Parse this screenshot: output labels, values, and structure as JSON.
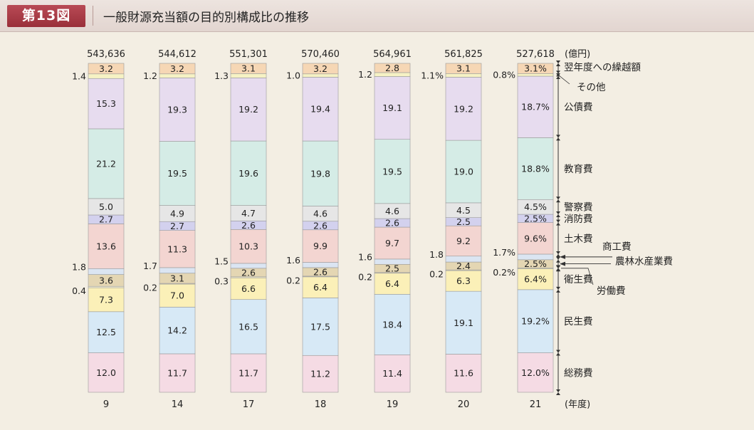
{
  "header": {
    "figure_label": "第13図",
    "title": "一般財源充当額の目的別構成比の推移"
  },
  "chart_data": {
    "type": "bar",
    "subtype": "100% stacked column",
    "title": "一般財源充当額の目的別構成比の推移",
    "unit_label": "(億円)",
    "xlabel_unit": "(年度)",
    "categories": [
      "9",
      "14",
      "17",
      "18",
      "19",
      "20",
      "21"
    ],
    "totals": [
      "543,636",
      "544,612",
      "551,301",
      "570,460",
      "564,961",
      "561,825",
      "527,618"
    ],
    "series": [
      {
        "name": "総務費",
        "color": "#f5dbe4",
        "values": [
          12.0,
          11.7,
          11.7,
          11.2,
          11.4,
          11.6,
          12.0
        ]
      },
      {
        "name": "民生費",
        "color": "#d7e9f6",
        "values": [
          12.5,
          14.2,
          16.5,
          17.5,
          18.4,
          19.1,
          19.2
        ]
      },
      {
        "name": "衛生費",
        "color": "#fbf0b8",
        "values": [
          7.3,
          7.0,
          6.6,
          6.4,
          6.4,
          6.3,
          6.4
        ]
      },
      {
        "name": "労働費",
        "color": "#f8f3d8",
        "values": [
          0.4,
          0.2,
          0.3,
          0.2,
          0.2,
          0.2,
          0.2
        ]
      },
      {
        "name": "農林水産業費",
        "color": "#e4d6b3",
        "values": [
          3.6,
          3.1,
          2.6,
          2.6,
          2.5,
          2.4,
          2.5
        ]
      },
      {
        "name": "商工費",
        "color": "#dbe5f2",
        "values": [
          1.8,
          1.7,
          1.5,
          1.6,
          1.6,
          1.8,
          1.7
        ]
      },
      {
        "name": "土木費",
        "color": "#f3d5d1",
        "values": [
          13.6,
          11.3,
          10.3,
          9.9,
          9.7,
          9.2,
          9.6
        ]
      },
      {
        "name": "消防費",
        "color": "#d3d1ee",
        "values": [
          2.7,
          2.7,
          2.6,
          2.6,
          2.6,
          2.5,
          2.5
        ]
      },
      {
        "name": "警察費",
        "color": "#e6e6e6",
        "values": [
          5.0,
          4.9,
          4.7,
          4.6,
          4.6,
          4.5,
          4.5
        ]
      },
      {
        "name": "教育費",
        "color": "#d5ece6",
        "values": [
          21.2,
          19.5,
          19.6,
          19.8,
          19.5,
          19.0,
          18.8
        ]
      },
      {
        "name": "公債費",
        "color": "#e7dcef",
        "values": [
          15.3,
          19.3,
          19.2,
          19.4,
          19.1,
          19.2,
          18.7
        ]
      },
      {
        "name": "その他",
        "color": "#f6f2c4",
        "values": [
          1.4,
          1.2,
          1.3,
          1.0,
          1.2,
          1.1,
          0.8
        ]
      },
      {
        "name": "翌年度への繰越額",
        "color": "#f6d7b5",
        "values": [
          3.2,
          3.2,
          3.1,
          3.2,
          2.8,
          3.1,
          3.1
        ]
      }
    ],
    "inside_labels": [
      [
        "12.0",
        "12.5",
        "7.3",
        "",
        "3.6",
        "",
        "13.6",
        "2.7",
        "5.0",
        "21.2",
        "15.3",
        "",
        "3.2"
      ],
      [
        "11.7",
        "14.2",
        "7.0",
        "",
        "3.1",
        "",
        "11.3",
        "2.7",
        "4.9",
        "19.5",
        "19.3",
        "",
        "3.2"
      ],
      [
        "11.7",
        "16.5",
        "6.6",
        "",
        "2.6",
        "",
        "10.3",
        "2.6",
        "4.7",
        "19.6",
        "19.2",
        "",
        "3.1"
      ],
      [
        "11.2",
        "17.5",
        "6.4",
        "",
        "2.6",
        "",
        "9.9",
        "2.6",
        "4.6",
        "19.8",
        "19.4",
        "",
        "3.2"
      ],
      [
        "11.4",
        "18.4",
        "6.4",
        "",
        "2.5",
        "",
        "9.7",
        "2.6",
        "4.6",
        "19.5",
        "19.1",
        "",
        "2.8"
      ],
      [
        "11.6",
        "19.1",
        "6.3",
        "",
        "2.4",
        "",
        "9.2",
        "2.5",
        "4.5",
        "19.0",
        "19.2",
        "",
        "3.1"
      ],
      [
        "12.0%",
        "19.2%",
        "6.4%",
        "",
        "2.5%",
        "",
        "9.6%",
        "2.5%",
        "4.5%",
        "18.8%",
        "18.7%",
        "",
        "3.1%"
      ]
    ],
    "side_labels": {
      "その他": [
        "1.4",
        "1.2",
        "1.3",
        "1.0",
        "1.2",
        "1.1%",
        "0.8%"
      ],
      "商工費": [
        "1.8",
        "1.7",
        "1.5",
        "1.6",
        "1.6",
        "1.8",
        "1.7%"
      ],
      "労働費": [
        "0.4",
        "0.2",
        "0.3",
        "0.2",
        "0.2",
        "0.2",
        "0.2%"
      ]
    },
    "legend": [
      "翌年度への繰越額",
      "その他",
      "公債費",
      "教育費",
      "警察費",
      "消防費",
      "土木費",
      "商工費",
      "農林水産業費",
      "衛生費",
      "労働費",
      "民生費",
      "総務費"
    ],
    "legend_placement": "right",
    "ylim": [
      0,
      100
    ]
  }
}
